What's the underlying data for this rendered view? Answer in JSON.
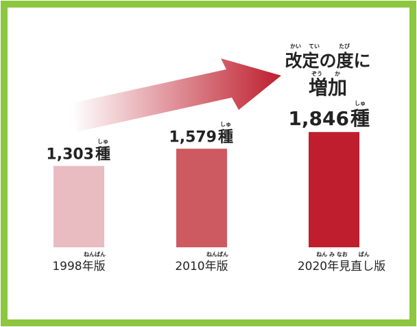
{
  "chart_data": {
    "type": "bar",
    "categories": [
      "1998年版",
      "2010年版",
      "2020年見直し版"
    ],
    "category_readings": [
      "ねんばん",
      "ねんばん",
      "ねん み なお　　ばん"
    ],
    "values": [
      1303,
      1579,
      1846
    ],
    "value_labels": [
      "1,303",
      "1,579",
      "1,846"
    ],
    "unit": "種",
    "unit_reading": "しゅ",
    "colors": [
      "#e8bcc0",
      "#cd5a60",
      "#be1e2d"
    ],
    "annotation": {
      "lines": [
        "改定の度に",
        "増加"
      ],
      "readings": [
        [
          "かい",
          "てい",
          "たび"
        ],
        [
          "ぞう",
          "か"
        ]
      ]
    }
  }
}
